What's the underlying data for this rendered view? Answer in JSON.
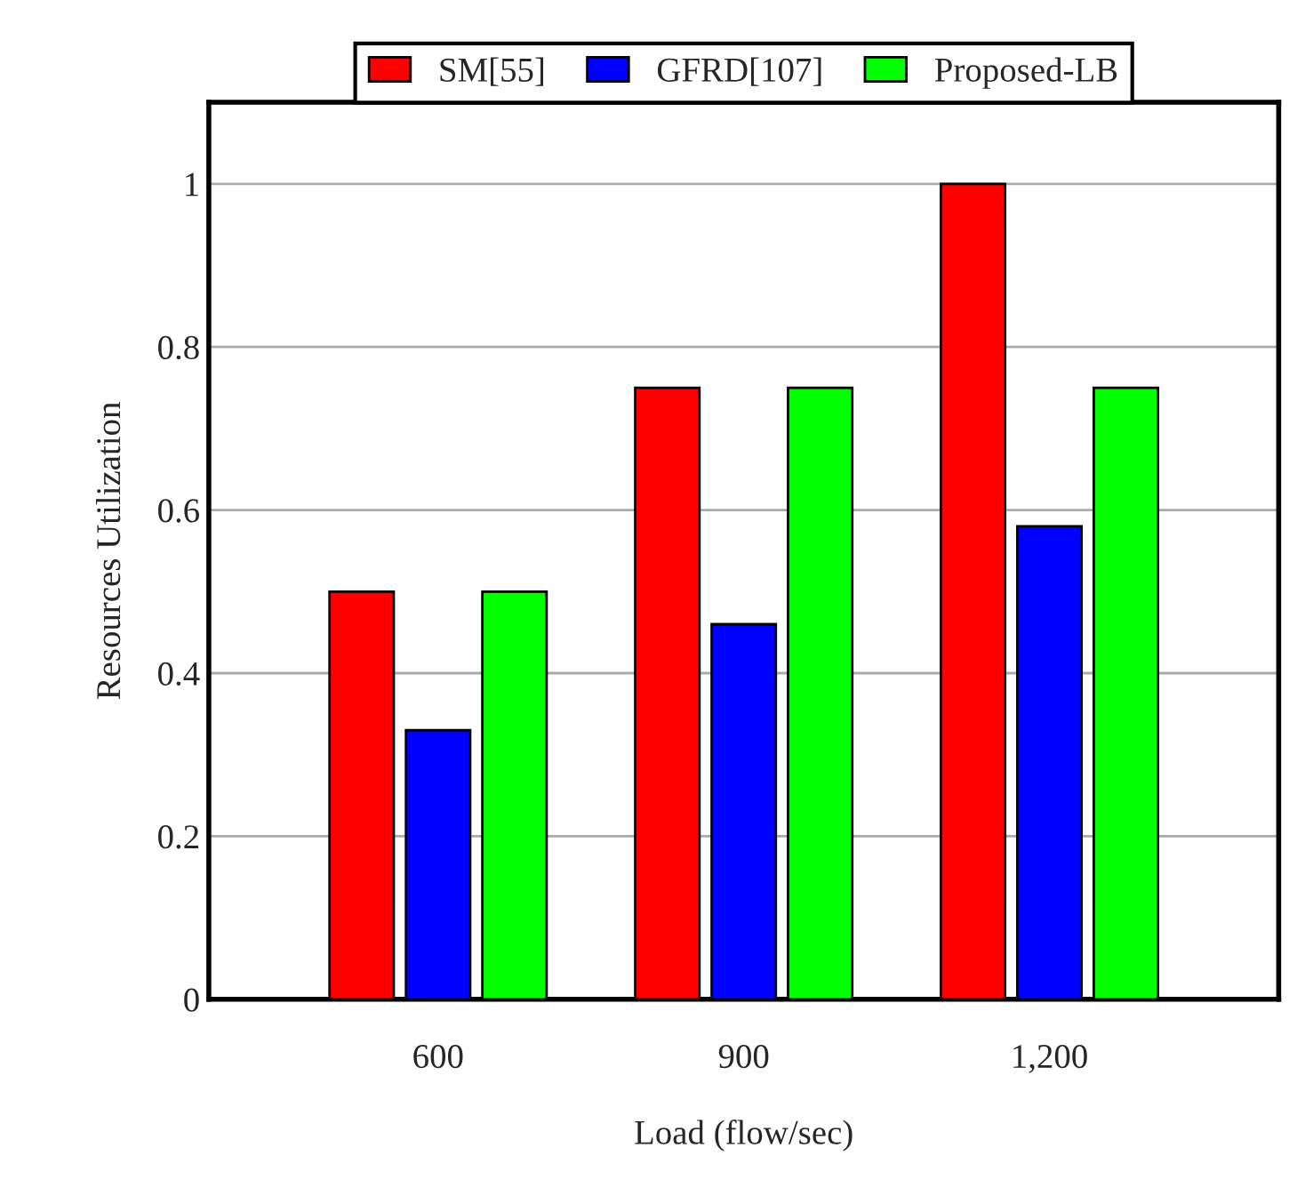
{
  "chart_data": {
    "type": "bar",
    "xlabel": "Load (flow/sec)",
    "ylabel": "Resources Utilization",
    "categories": [
      "600",
      "900",
      "1,200"
    ],
    "series": [
      {
        "name": "SM[55]",
        "color": "#ff0000",
        "values": [
          0.5,
          0.75,
          1.0
        ]
      },
      {
        "name": "GFRD[107]",
        "color": "#0000ff",
        "values": [
          0.33,
          0.46,
          0.58
        ]
      },
      {
        "name": "Proposed-LB",
        "color": "#00ff00",
        "values": [
          0.5,
          0.75,
          0.75
        ]
      }
    ],
    "ylim": [
      0,
      1.1
    ],
    "yticks": [
      0,
      0.2,
      0.4,
      0.6,
      0.8,
      1
    ],
    "grid": "y",
    "legend": "top"
  }
}
